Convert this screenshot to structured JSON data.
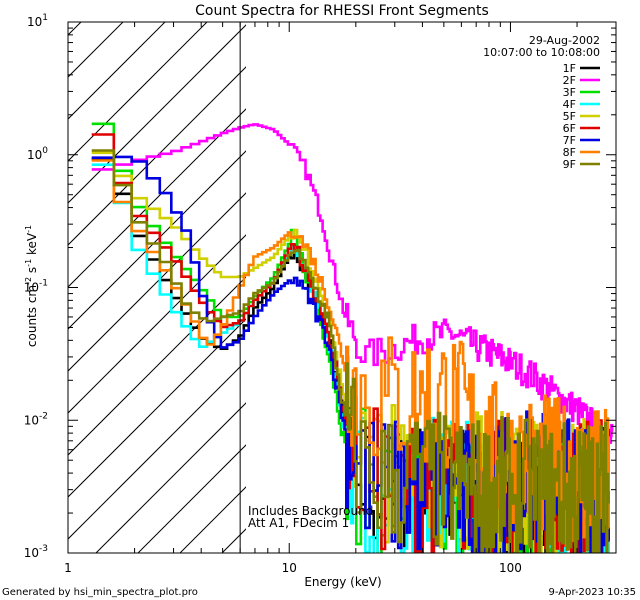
{
  "footer": {
    "generated_by": "Generated by hsi_min_spectra_plot.pro",
    "timestamp": "9-Apr-2023 10:35"
  },
  "chart_data": {
    "type": "line",
    "title": "Count Spectra for RHESSI Front Segments",
    "xlabel": "Energy (keV)",
    "ylabel_parts": {
      "base": "counts cm",
      "exp1": "-2",
      "mid1": " s",
      "exp2": "-1",
      "mid2": " keV",
      "exp3": "-1"
    },
    "xscale": "log",
    "yscale": "log",
    "xlim": [
      1,
      300
    ],
    "ylim": [
      0.001,
      10
    ],
    "x_ticks": [
      {
        "value": 1,
        "label": "1"
      },
      {
        "value": 10,
        "label": "10"
      },
      {
        "value": 100,
        "label": "100"
      }
    ],
    "y_ticks": [
      {
        "value": 0.001,
        "base": "10",
        "exp": "-3"
      },
      {
        "value": 0.01,
        "base": "10",
        "exp": "-2"
      },
      {
        "value": 0.1,
        "base": "10",
        "exp": "-1"
      },
      {
        "value": 1,
        "base": "10",
        "exp": "0"
      },
      {
        "value": 10,
        "base": "10",
        "exp": "1"
      }
    ],
    "date": "29-Aug-2002",
    "time_range": "10:07:00 to 10:08:00",
    "annotations": [
      "Includes Background",
      "Att A1, FDecim 1"
    ],
    "hatched_region_x": [
      1,
      6
    ],
    "cutoff_line_x": 6,
    "series": [
      {
        "name": "1F",
        "color": "#000000",
        "points": [
          [
            1.28,
            1.05
          ],
          [
            1.6,
            0.82
          ],
          [
            2.0,
            0.28
          ],
          [
            3.0,
            0.09
          ],
          [
            4.0,
            0.042
          ],
          [
            5.0,
            0.034
          ],
          [
            6.0,
            0.042
          ],
          [
            7.0,
            0.07
          ],
          [
            8.5,
            0.1
          ],
          [
            10.5,
            0.2
          ],
          [
            12.5,
            0.1
          ],
          [
            15,
            0.045
          ],
          [
            18,
            0.009
          ],
          [
            22,
            0.0032
          ],
          [
            30,
            0.003
          ],
          [
            40,
            0.003
          ],
          [
            60,
            0.0026
          ],
          [
            80,
            0.0025
          ],
          [
            100,
            0.0025
          ],
          [
            150,
            0.0024
          ],
          [
            200,
            0.0024
          ],
          [
            280,
            0.0025
          ]
        ]
      },
      {
        "name": "2F",
        "color": "#ff00ff",
        "points": [
          [
            1.28,
            0.75
          ],
          [
            1.6,
            0.8
          ],
          [
            2.0,
            0.9
          ],
          [
            3.0,
            1.05
          ],
          [
            4.0,
            1.25
          ],
          [
            5.0,
            1.45
          ],
          [
            6.0,
            1.6
          ],
          [
            7.0,
            1.7
          ],
          [
            8.5,
            1.55
          ],
          [
            10,
            1.2
          ],
          [
            12,
            0.75
          ],
          [
            14,
            0.35
          ],
          [
            16,
            0.13
          ],
          [
            18,
            0.06
          ],
          [
            22,
            0.03
          ],
          [
            30,
            0.035
          ],
          [
            40,
            0.042
          ],
          [
            55,
            0.045
          ],
          [
            70,
            0.036
          ],
          [
            90,
            0.03
          ],
          [
            120,
            0.023
          ],
          [
            150,
            0.017
          ],
          [
            200,
            0.012
          ],
          [
            250,
            0.0085
          ],
          [
            290,
            0.007
          ]
        ]
      },
      {
        "name": "3F",
        "color": "#00e000",
        "points": [
          [
            1.28,
            2.6
          ],
          [
            1.6,
            1.15
          ],
          [
            2.0,
            0.45
          ],
          [
            3.0,
            0.18
          ],
          [
            4.0,
            0.1
          ],
          [
            5.0,
            0.06
          ],
          [
            6.0,
            0.06
          ],
          [
            7.0,
            0.085
          ],
          [
            8.5,
            0.12
          ],
          [
            10.5,
            0.25
          ],
          [
            12.5,
            0.1
          ],
          [
            15,
            0.035
          ],
          [
            18,
            0.006
          ],
          [
            22,
            0.0033
          ],
          [
            30,
            0.003
          ],
          [
            40,
            0.0026
          ],
          [
            60,
            0.0025
          ],
          [
            80,
            0.0025
          ],
          [
            100,
            0.0024
          ],
          [
            150,
            0.0024
          ],
          [
            200,
            0.0024
          ],
          [
            280,
            0.0026
          ]
        ]
      },
      {
        "name": "4F",
        "color": "#00ffff",
        "points": [
          [
            1.28,
            0.95
          ],
          [
            1.6,
            0.75
          ],
          [
            2.0,
            0.22
          ],
          [
            3.0,
            0.07
          ],
          [
            4.0,
            0.035
          ],
          [
            5.0,
            0.045
          ],
          [
            6.0,
            0.055
          ],
          [
            7.0,
            0.08
          ],
          [
            8.5,
            0.11
          ],
          [
            10.5,
            0.21
          ],
          [
            12.5,
            0.1
          ],
          [
            15,
            0.045
          ],
          [
            18,
            0.008
          ],
          [
            22,
            0.003
          ],
          [
            30,
            0.0028
          ],
          [
            40,
            0.003
          ],
          [
            60,
            0.0028
          ],
          [
            80,
            0.0026
          ],
          [
            100,
            0.0025
          ],
          [
            150,
            0.0025
          ],
          [
            200,
            0.0024
          ],
          [
            280,
            0.0025
          ]
        ]
      },
      {
        "name": "5F",
        "color": "#d0d000",
        "points": [
          [
            1.28,
            1.2
          ],
          [
            1.6,
            0.9
          ],
          [
            2.0,
            0.5
          ],
          [
            3.0,
            0.3
          ],
          [
            4.0,
            0.17
          ],
          [
            5.0,
            0.12
          ],
          [
            6.0,
            0.12
          ],
          [
            7.0,
            0.14
          ],
          [
            8.5,
            0.17
          ],
          [
            10.5,
            0.27
          ],
          [
            12.5,
            0.15
          ],
          [
            15,
            0.07
          ],
          [
            18,
            0.012
          ],
          [
            22,
            0.005
          ],
          [
            30,
            0.004
          ],
          [
            40,
            0.0038
          ],
          [
            60,
            0.0036
          ],
          [
            80,
            0.0034
          ],
          [
            100,
            0.0034
          ],
          [
            150,
            0.0032
          ],
          [
            200,
            0.0032
          ],
          [
            280,
            0.0034
          ]
        ]
      },
      {
        "name": "6F",
        "color": "#e00000",
        "points": [
          [
            1.28,
            2.3
          ],
          [
            1.6,
            0.9
          ],
          [
            2.0,
            0.38
          ],
          [
            3.0,
            0.17
          ],
          [
            4.0,
            0.08
          ],
          [
            5.0,
            0.05
          ],
          [
            6.0,
            0.055
          ],
          [
            7.0,
            0.08
          ],
          [
            8.5,
            0.11
          ],
          [
            10.5,
            0.23
          ],
          [
            12.5,
            0.1
          ],
          [
            15,
            0.05
          ],
          [
            18,
            0.01
          ],
          [
            22,
            0.0038
          ],
          [
            30,
            0.0032
          ],
          [
            40,
            0.0032
          ],
          [
            60,
            0.003
          ],
          [
            80,
            0.003
          ],
          [
            100,
            0.0029
          ],
          [
            150,
            0.0028
          ],
          [
            200,
            0.0028
          ],
          [
            280,
            0.003
          ]
        ]
      },
      {
        "name": "7F",
        "color": "#0000e0",
        "points": [
          [
            1.28,
            0.95
          ],
          [
            1.6,
            0.95
          ],
          [
            2.0,
            0.98
          ],
          [
            2.8,
            0.5
          ],
          [
            3.5,
            0.25
          ],
          [
            4.3,
            0.06
          ],
          [
            5.0,
            0.035
          ],
          [
            6.0,
            0.04
          ],
          [
            7.0,
            0.06
          ],
          [
            8.5,
            0.09
          ],
          [
            10.5,
            0.12
          ],
          [
            12.5,
            0.08
          ],
          [
            15,
            0.04
          ],
          [
            18,
            0.008
          ],
          [
            22,
            0.0035
          ],
          [
            30,
            0.003
          ],
          [
            40,
            0.003
          ],
          [
            60,
            0.0026
          ],
          [
            80,
            0.0026
          ],
          [
            100,
            0.003
          ],
          [
            130,
            0.0045
          ],
          [
            150,
            0.0035
          ],
          [
            200,
            0.0028
          ],
          [
            280,
            0.0025
          ]
        ]
      },
      {
        "name": "8F",
        "color": "#ff8000",
        "points": [
          [
            1.28,
            1.4
          ],
          [
            1.6,
            0.6
          ],
          [
            2.0,
            0.3
          ],
          [
            2.8,
            0.13
          ],
          [
            3.5,
            0.07
          ],
          [
            4.3,
            0.035
          ],
          [
            5.0,
            0.05
          ],
          [
            6.0,
            0.1
          ],
          [
            7.0,
            0.17
          ],
          [
            8.5,
            0.2
          ],
          [
            10.5,
            0.28
          ],
          [
            12.5,
            0.18
          ],
          [
            15,
            0.08
          ],
          [
            18,
            0.025
          ],
          [
            22,
            0.015
          ],
          [
            30,
            0.014
          ],
          [
            40,
            0.014
          ],
          [
            50,
            0.015
          ],
          [
            60,
            0.012
          ],
          [
            80,
            0.006
          ],
          [
            100,
            0.005
          ],
          [
            150,
            0.0045
          ],
          [
            200,
            0.0038
          ],
          [
            280,
            0.0035
          ]
        ]
      },
      {
        "name": "9F",
        "color": "#808000",
        "points": [
          [
            1.28,
            1.3
          ],
          [
            1.6,
            0.9
          ],
          [
            2.0,
            0.35
          ],
          [
            2.8,
            0.15
          ],
          [
            3.5,
            0.07
          ],
          [
            4.3,
            0.055
          ],
          [
            5.0,
            0.06
          ],
          [
            6.0,
            0.065
          ],
          [
            7.0,
            0.09
          ],
          [
            8.5,
            0.11
          ],
          [
            10.5,
            0.2
          ],
          [
            12.5,
            0.12
          ],
          [
            15,
            0.06
          ],
          [
            18,
            0.01
          ],
          [
            22,
            0.004
          ],
          [
            30,
            0.0035
          ],
          [
            40,
            0.0035
          ],
          [
            60,
            0.0032
          ],
          [
            80,
            0.003
          ],
          [
            100,
            0.003
          ],
          [
            150,
            0.0029
          ],
          [
            200,
            0.0029
          ],
          [
            280,
            0.003
          ]
        ]
      }
    ]
  }
}
